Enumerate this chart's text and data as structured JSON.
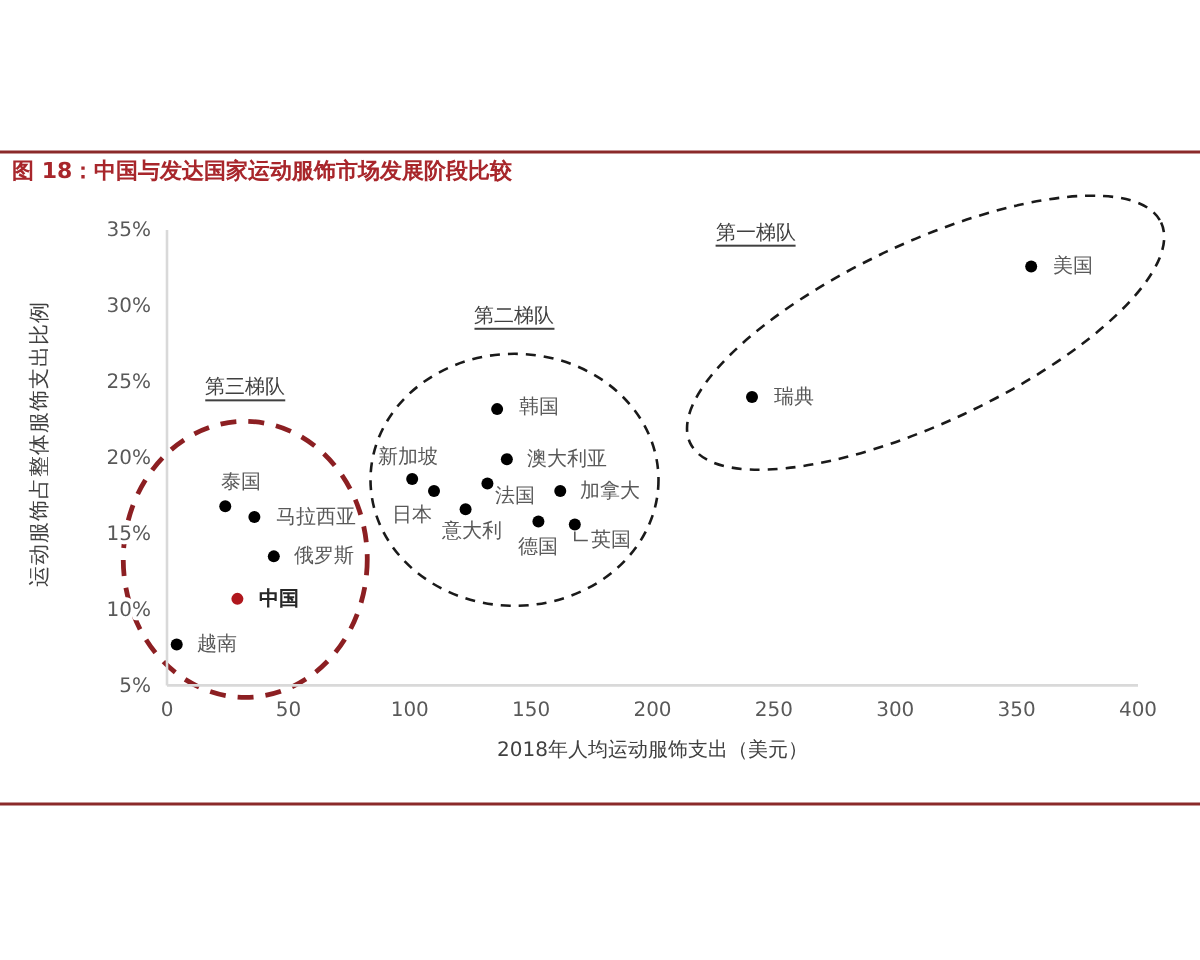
{
  "chart_data": {
    "type": "scatter",
    "title": "图 18：中国与发达国家运动服饰市场发展阶段比较",
    "xlabel": "2018年人均运动服饰支出（美元）",
    "ylabel": "运动服饰占整体服饰支出比例",
    "xlim": [
      0,
      400
    ],
    "xticks": [
      0,
      50,
      100,
      150,
      200,
      250,
      300,
      350,
      400
    ],
    "ylim": [
      5,
      35
    ],
    "yticks": [
      {
        "value": 5,
        "label": "5%"
      },
      {
        "value": 10,
        "label": "10%"
      },
      {
        "value": 15,
        "label": "15%"
      },
      {
        "value": 20,
        "label": "20%"
      },
      {
        "value": 25,
        "label": "25%"
      },
      {
        "value": 30,
        "label": "30%"
      },
      {
        "value": 35,
        "label": "35%"
      }
    ],
    "marker": "circle",
    "series": [
      {
        "color": "#000000",
        "colors": [
          "#000000",
          "#b0171d",
          "#000000",
          "#000000",
          "#000000"
        ],
        "x": [
          4,
          29,
          24,
          36,
          44
        ],
        "values": [
          7.7,
          10.7,
          16.8,
          16.1,
          13.5
        ]
      },
      {
        "color": "#000000",
        "x": [
          101,
          110,
          123,
          132,
          136,
          140,
          153,
          162,
          168
        ],
        "values": [
          18.6,
          17.8,
          16.6,
          18.3,
          23.2,
          19.9,
          15.8,
          17.8,
          15.6
        ]
      },
      {
        "color": "#000000",
        "x": [
          241,
          356
        ],
        "values": [
          24.0,
          32.6
        ]
      }
    ],
    "annotations": [
      {
        "text": "越南",
        "x": 4,
        "y": 7.7
      },
      {
        "text": "中国",
        "x": 29,
        "y": 10.7
      },
      {
        "text": "泰国",
        "x": 24,
        "y": 16.8
      },
      {
        "text": "马拉西亚",
        "x": 36,
        "y": 16.1
      },
      {
        "text": "俄罗斯",
        "x": 44,
        "y": 13.5
      },
      {
        "text": "新加坡",
        "x": 101,
        "y": 18.6
      },
      {
        "text": "日本",
        "x": 110,
        "y": 17.8
      },
      {
        "text": "意大利",
        "x": 123,
        "y": 16.6
      },
      {
        "text": "法国",
        "x": 132,
        "y": 18.3
      },
      {
        "text": "韩国",
        "x": 136,
        "y": 23.2
      },
      {
        "text": "澳大利亚",
        "x": 140,
        "y": 19.9
      },
      {
        "text": "德国",
        "x": 153,
        "y": 15.8
      },
      {
        "text": "加拿大",
        "x": 162,
        "y": 17.8
      },
      {
        "text": "英国",
        "x": 168,
        "y": 15.6
      },
      {
        "text": "瑞典",
        "x": 241,
        "y": 24.0
      },
      {
        "text": "美国",
        "x": 356,
        "y": 32.6
      },
      "第三梯队",
      "第二梯队",
      "第一梯队"
    ]
  }
}
